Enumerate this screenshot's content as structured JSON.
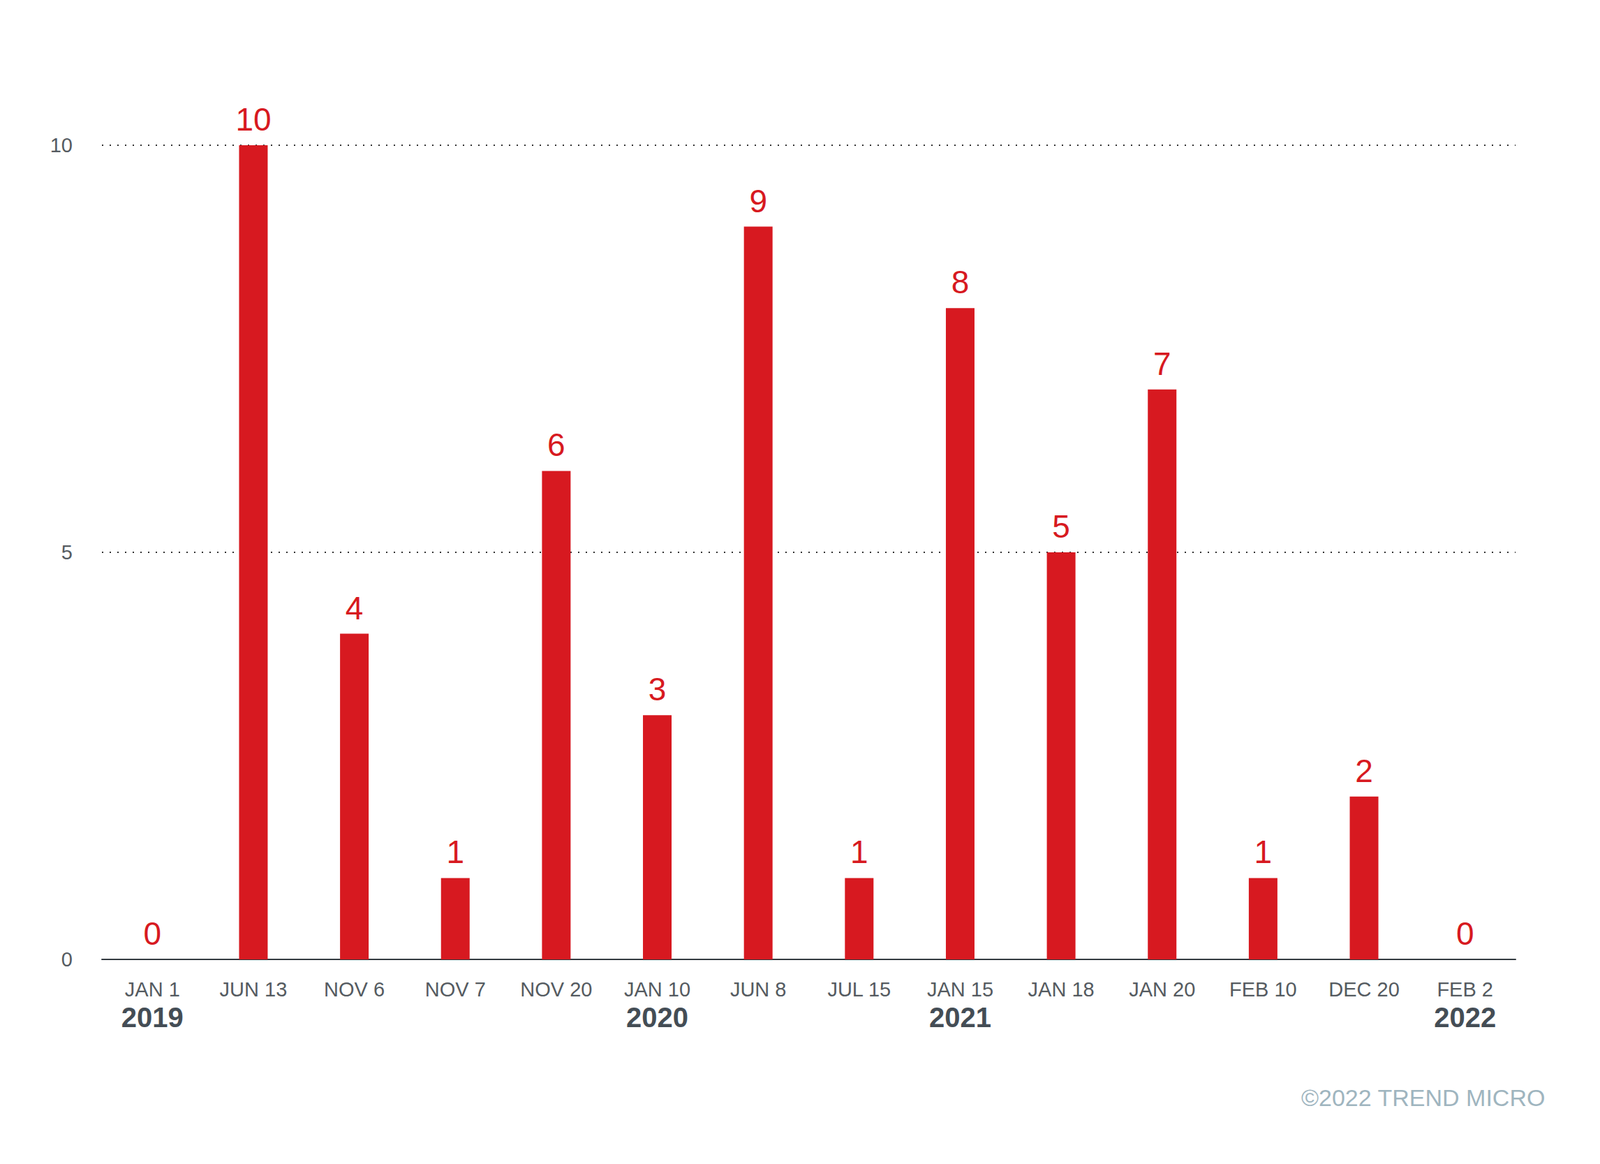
{
  "chart_data": {
    "type": "bar",
    "categories": [
      "JAN 1\n2019",
      "JUN 13",
      "NOV 6",
      "NOV 7",
      "NOV 20",
      "JAN 10\n2020",
      "JUN 8",
      "JUL 15",
      "JAN 15\n2021",
      "JAN 18",
      "JAN 20",
      "FEB 10",
      "DEC 20",
      "FEB 2\n2022"
    ],
    "values": [
      0,
      10,
      4,
      1,
      6,
      3,
      9,
      1,
      8,
      5,
      7,
      1,
      2,
      0
    ],
    "color": "#d71920",
    "ylim": [
      0,
      10
    ],
    "yticks": [
      0,
      5,
      10
    ],
    "grid": true,
    "data_labels": true,
    "annotations": [
      "©2022 TREND MICRO"
    ]
  }
}
